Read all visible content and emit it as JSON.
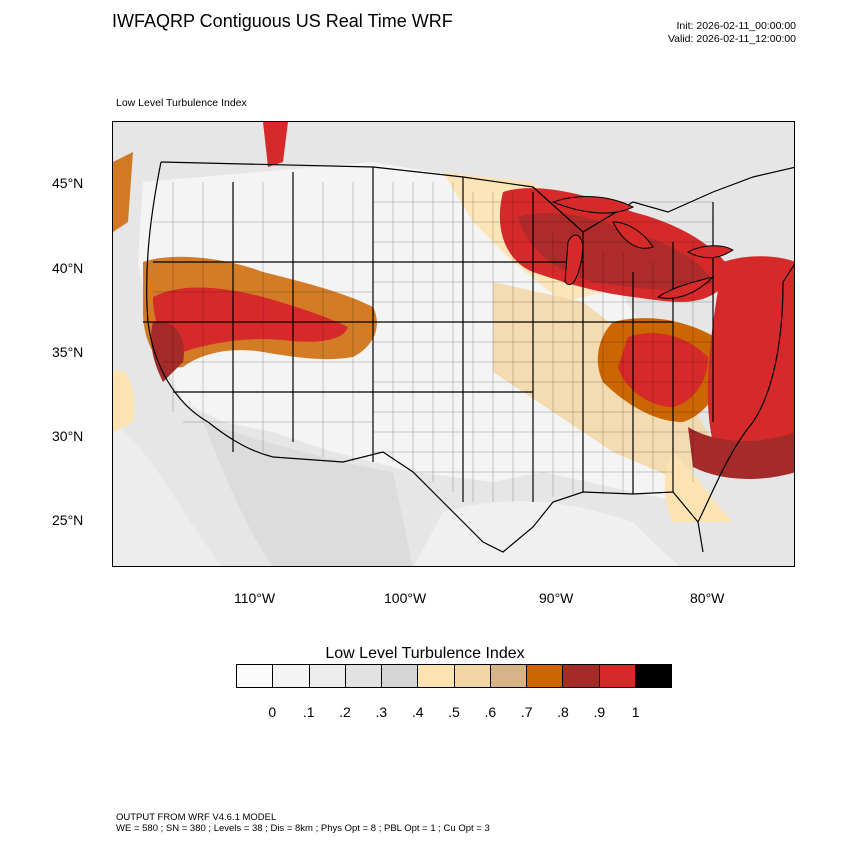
{
  "header": {
    "title": "IWFAQRP Contiguous US Real Time WRF",
    "init": "Init: 2026-02-11_00:00:00",
    "valid": "Valid: 2026-02-11_12:00:00"
  },
  "map": {
    "subtitle": "Low Level Turbulence Index",
    "lat_labels": [
      "45°N",
      "40°N",
      "35°N",
      "30°N",
      "25°N"
    ],
    "lon_labels": [
      "110°W",
      "100°W",
      "90°W",
      "80°W"
    ]
  },
  "colorbar": {
    "title": "Low Level Turbulence Index",
    "colors": [
      "#fbfbfb",
      "#f4f4f4",
      "#ececec",
      "#e2e2e2",
      "#d5d5d5",
      "#fde3b2",
      "#f2d6a6",
      "#d6b389",
      "#cc6600",
      "#a52a2a",
      "#d62a2a",
      "#000000"
    ],
    "ticks": [
      "0",
      ".1",
      ".2",
      ".3",
      ".4",
      ".5",
      ".6",
      ".7",
      ".8",
      ".9",
      "1"
    ]
  },
  "footer": {
    "line1": "OUTPUT FROM WRF V4.6.1 MODEL",
    "line2": "WE = 580 ; SN = 380 ; Levels = 38 ; Dis = 8km ; Phys Opt = 8 ; PBL Opt = 1 ; Cu Opt = 3"
  }
}
